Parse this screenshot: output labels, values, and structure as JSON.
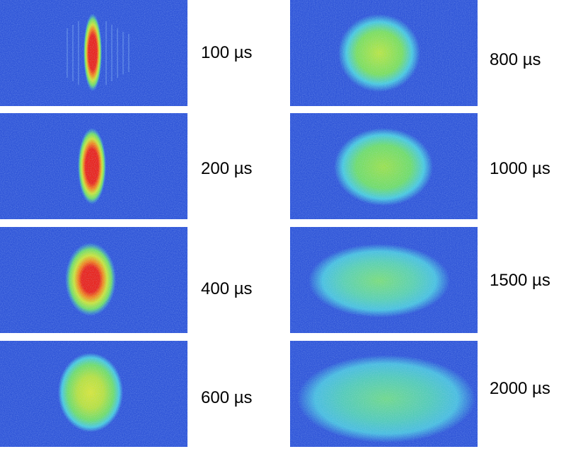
{
  "figure": {
    "panels": [
      {
        "label": "100 µs",
        "delay_us": 100
      },
      {
        "label": "200 µs",
        "delay_us": 200
      },
      {
        "label": "400 µs",
        "delay_us": 400
      },
      {
        "label": "600 µs",
        "delay_us": 600
      },
      {
        "label": "800 µs",
        "delay_us": 800
      },
      {
        "label": "1000 µs",
        "delay_us": 1000
      },
      {
        "label": "1500 µs",
        "delay_us": 1500
      },
      {
        "label": "2000 µs",
        "delay_us": 2000
      }
    ],
    "colors": {
      "background": "#2f55d8",
      "halo": "#48c8e0",
      "mid": "#6fdc6a",
      "core": "#c9e43a",
      "peak": "#e8231c",
      "peak_outer": "#f08a20"
    }
  }
}
